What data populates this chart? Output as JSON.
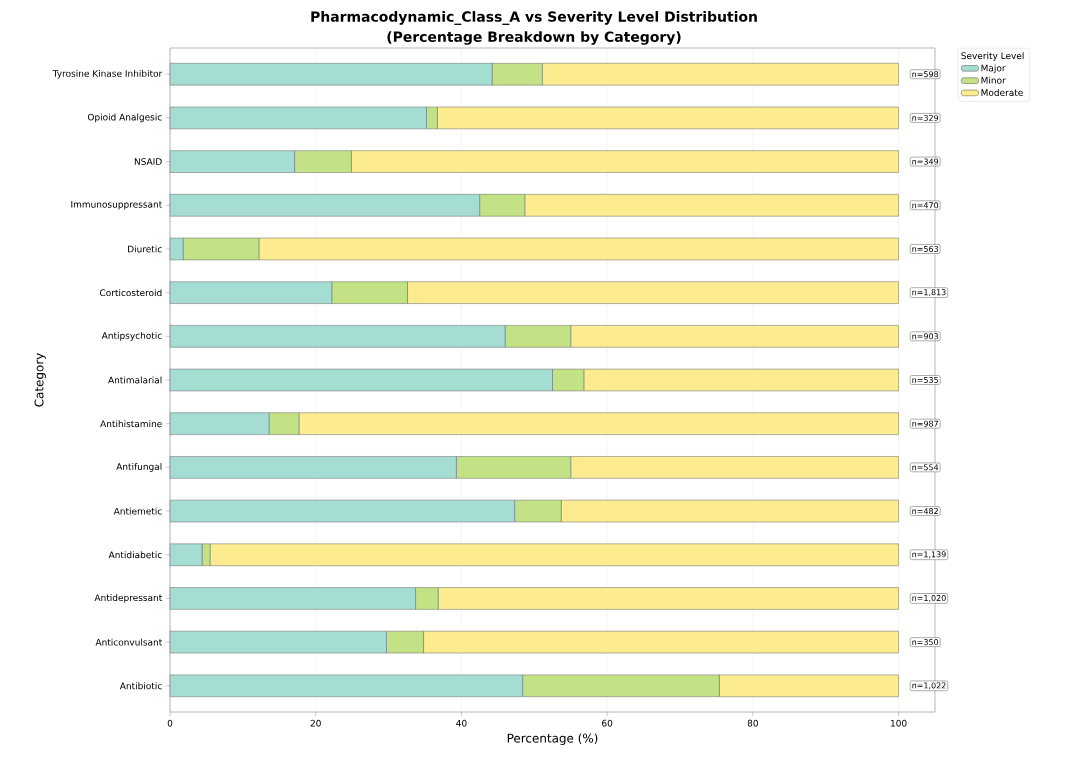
{
  "chart_data": {
    "type": "bar",
    "orientation": "horizontal",
    "stacked": true,
    "title": "Pharmacodynamic_Class_A vs Severity Level Distribution",
    "subtitle": "(Percentage Breakdown by Category)",
    "xlabel": "Percentage (%)",
    "ylabel": "Category",
    "legend_title": "Severity Level",
    "categories": [
      "Tyrosine Kinase Inhibitor",
      "Opioid Analgesic",
      "NSAID",
      "Immunosuppressant",
      "Diuretic",
      "Corticosteroid",
      "Antipsychotic",
      "Antimalarial",
      "Antihistamine",
      "Antifungal",
      "Antiemetic",
      "Antidiabetic",
      "Antidepressant",
      "Anticonvulsant",
      "Antibiotic"
    ],
    "series": [
      {
        "name": "Major",
        "color": "#a5ddd3",
        "values": [
          44.2,
          35.2,
          17.1,
          42.5,
          1.8,
          22.2,
          46.0,
          52.5,
          13.6,
          39.3,
          47.3,
          4.4,
          33.7,
          29.7,
          48.4
        ]
      },
      {
        "name": "Minor",
        "color": "#c3e285",
        "values": [
          6.9,
          1.5,
          7.8,
          6.2,
          10.4,
          10.4,
          9.0,
          4.3,
          4.1,
          15.7,
          6.4,
          1.1,
          3.1,
          5.1,
          27.0
        ]
      },
      {
        "name": "Moderate",
        "color": "#fdec8f",
        "values": [
          48.9,
          63.3,
          75.1,
          51.3,
          87.8,
          67.4,
          45.0,
          43.2,
          82.3,
          45.0,
          46.3,
          94.5,
          63.2,
          65.2,
          24.6
        ]
      }
    ],
    "xlim": [
      0,
      105
    ],
    "xticks": [
      0,
      20,
      40,
      60,
      80,
      100
    ],
    "grid": "x",
    "legend": "top right",
    "annotations": [
      "n=598",
      "n=329",
      "n=349",
      "n=470",
      "n=563",
      "n=1,813",
      "n=903",
      "n=535",
      "n=987",
      "n=554",
      "n=482",
      "n=1,139",
      "n=1,020",
      "n=350",
      "n=1,022"
    ]
  }
}
